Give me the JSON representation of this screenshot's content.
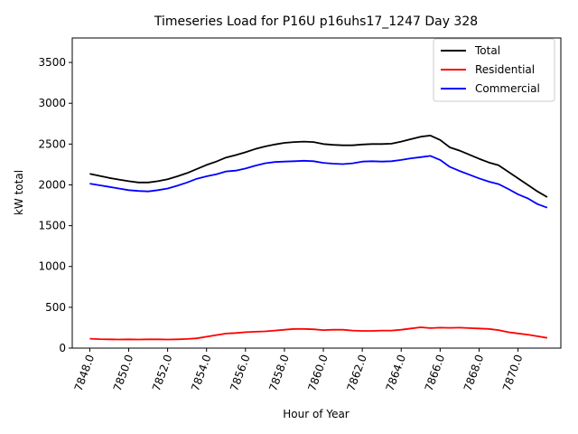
{
  "chart_data": {
    "type": "line",
    "title": "Timeseries Load for P16U p16uhs17_1247  Day 328",
    "xlabel": "Hour of Year",
    "ylabel": "kW total",
    "xlim": [
      7847.1,
      7872.2
    ],
    "ylim": [
      0,
      3800
    ],
    "xticks": [
      7848,
      7850,
      7852,
      7854,
      7856,
      7858,
      7860,
      7862,
      7864,
      7866,
      7868,
      7870
    ],
    "xtick_labels": [
      "7848.0",
      "7850.0",
      "7852.0",
      "7854.0",
      "7856.0",
      "7858.0",
      "7860.0",
      "7862.0",
      "7864.0",
      "7866.0",
      "7868.0",
      "7870.0"
    ],
    "yticks": [
      0,
      500,
      1000,
      1500,
      2000,
      2500,
      3000,
      3500
    ],
    "ytick_labels": [
      "0",
      "500",
      "1000",
      "1500",
      "2000",
      "2500",
      "3000",
      "3500"
    ],
    "legend_position": "top-right",
    "x": [
      7848,
      7848.5,
      7849,
      7849.5,
      7850,
      7850.5,
      7851,
      7851.5,
      7852,
      7852.5,
      7853,
      7853.5,
      7854,
      7854.5,
      7855,
      7855.5,
      7856,
      7856.5,
      7857,
      7857.5,
      7858,
      7858.5,
      7859,
      7859.5,
      7860,
      7860.5,
      7861,
      7861.5,
      7862,
      7862.5,
      7863,
      7863.5,
      7864,
      7864.5,
      7865,
      7865.5,
      7866,
      7866.5,
      7867,
      7867.5,
      7868,
      7868.5,
      7869,
      7869.5,
      7870,
      7870.5,
      7871,
      7871.5
    ],
    "series": [
      {
        "name": "Total",
        "color": "#000000",
        "values": [
          2135,
          2110,
          2085,
          2065,
          2045,
          2030,
          2030,
          2045,
          2070,
          2105,
          2145,
          2195,
          2245,
          2285,
          2335,
          2365,
          2400,
          2440,
          2470,
          2495,
          2515,
          2525,
          2530,
          2525,
          2500,
          2490,
          2485,
          2485,
          2495,
          2500,
          2500,
          2505,
          2530,
          2560,
          2590,
          2605,
          2550,
          2460,
          2420,
          2370,
          2320,
          2275,
          2240,
          2160,
          2080,
          2000,
          1920,
          1850
        ]
      },
      {
        "name": "Residential",
        "color": "#ff0000",
        "values": [
          115,
          110,
          108,
          105,
          108,
          105,
          108,
          108,
          105,
          108,
          112,
          120,
          140,
          160,
          178,
          185,
          195,
          200,
          205,
          215,
          225,
          235,
          235,
          230,
          220,
          225,
          225,
          215,
          210,
          210,
          215,
          215,
          225,
          240,
          255,
          245,
          250,
          248,
          250,
          245,
          240,
          235,
          220,
          195,
          180,
          165,
          145,
          125
        ]
      },
      {
        "name": "Commercial",
        "color": "#0000ff",
        "values": [
          2015,
          1995,
          1975,
          1955,
          1935,
          1925,
          1920,
          1935,
          1955,
          1990,
          2030,
          2075,
          2105,
          2130,
          2165,
          2175,
          2200,
          2235,
          2265,
          2280,
          2285,
          2290,
          2295,
          2290,
          2270,
          2260,
          2255,
          2265,
          2285,
          2290,
          2285,
          2290,
          2305,
          2325,
          2340,
          2355,
          2305,
          2220,
          2170,
          2125,
          2080,
          2040,
          2010,
          1950,
          1885,
          1835,
          1765,
          1720
        ]
      }
    ]
  }
}
